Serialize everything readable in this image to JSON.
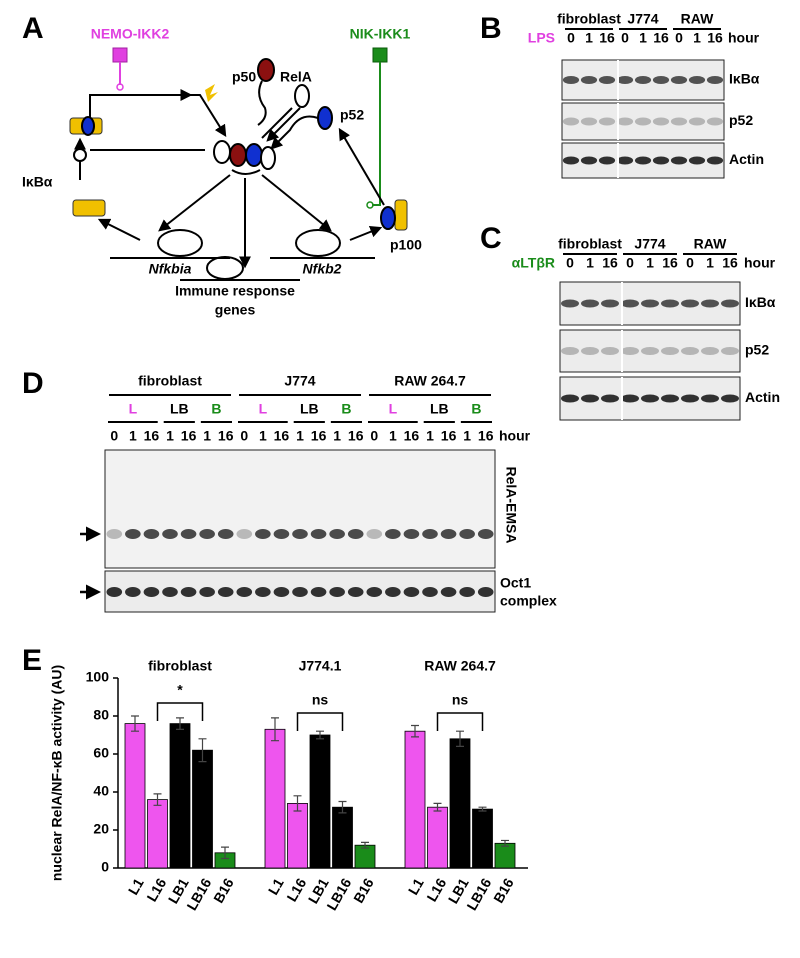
{
  "panels": {
    "a": "A",
    "b": "B",
    "c": "C",
    "d": "D",
    "e": "E"
  },
  "diagram": {
    "kinases": [
      "NEMO-IKK2",
      "NIK-IKK1"
    ],
    "p50": "p50",
    "rela": "RelA",
    "p52": "p52",
    "ikba": "IκBα",
    "p100": "p100",
    "genes": [
      "Nfkbia",
      "Nfkb2"
    ],
    "target_genes": [
      "Immune response",
      "genes"
    ]
  },
  "blot_b": {
    "treatment": "LPS",
    "cell_lines": [
      "fibroblast",
      "J774",
      "RAW"
    ],
    "timepoints": [
      0,
      1,
      16
    ],
    "unit": "hour",
    "proteins": [
      "IκBα",
      "p52",
      "Actin"
    ]
  },
  "blot_c": {
    "treatment": "αLTβR",
    "cell_lines": [
      "fibroblast",
      "J774",
      "RAW"
    ],
    "timepoints": [
      0,
      1,
      16
    ],
    "unit": "hour",
    "proteins": [
      "IκBα",
      "p52",
      "Actin"
    ]
  },
  "emsa": {
    "cell_lines": [
      "fibroblast",
      "J774",
      "RAW 264.7"
    ],
    "treatments": [
      {
        "name": "L",
        "color": "#e040e0",
        "timepoints": [
          0,
          1,
          16
        ]
      },
      {
        "name": "LB",
        "color": "#000000",
        "timepoints": [
          1,
          16
        ]
      },
      {
        "name": "B",
        "color": "#1a8c1a",
        "timepoints": [
          1,
          16
        ]
      }
    ],
    "unit": "hour",
    "gel_label": "RelA-EMSA",
    "control_label": [
      "Oct1",
      "complex"
    ]
  },
  "chart_data": {
    "type": "bar",
    "ylabel": "nuclear RelA/NF-κB activity (AU)",
    "ylim": [
      0,
      100
    ],
    "yticks": [
      0,
      20,
      40,
      60,
      80,
      100
    ],
    "categories": [
      "L1",
      "L16",
      "LB1",
      "LB16",
      "B16"
    ],
    "colors": [
      "#ee55ee",
      "#ee55ee",
      "#000000",
      "#000000",
      "#1a8c1a"
    ],
    "groups": [
      {
        "name": "fibroblast",
        "values": [
          76,
          36,
          76,
          62,
          8
        ],
        "errors": [
          4,
          3,
          3,
          6,
          3
        ],
        "annotation": "*"
      },
      {
        "name": "J774.1",
        "values": [
          73,
          34,
          70,
          32,
          12
        ],
        "errors": [
          6,
          4,
          2,
          3,
          1.5
        ],
        "annotation": "ns"
      },
      {
        "name": "RAW 264.7",
        "values": [
          72,
          32,
          68,
          31,
          13
        ],
        "errors": [
          3,
          2,
          4,
          1,
          1.5
        ],
        "annotation": "ns"
      }
    ]
  }
}
